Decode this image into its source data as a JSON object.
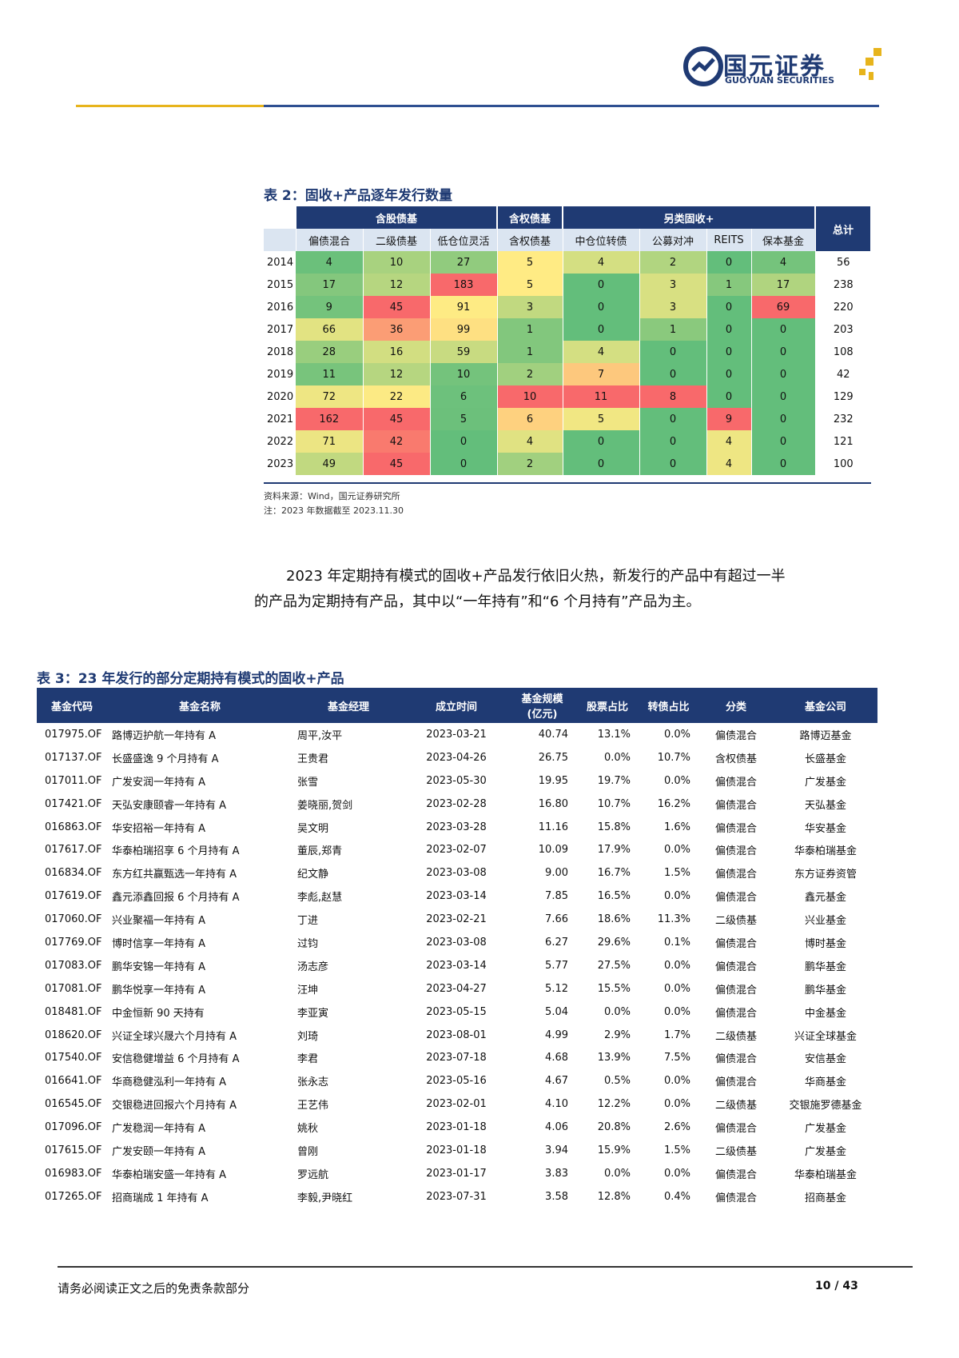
{
  "header": {
    "logo_cn": "国元证券",
    "logo_en": "GUOYUAN SECURITIES",
    "colors": {
      "brand_blue": "#1f3a73",
      "brand_gold": "#e7b41c"
    }
  },
  "table2": {
    "title": "表 2：固收+产品逐年发行数量",
    "groups": [
      "含股债基",
      "含权债基",
      "另类固收+",
      "总计"
    ],
    "columns": [
      "偏债混合",
      "二级债基",
      "低仓位灵活",
      "含权债基",
      "中仓位转债",
      "公募对冲",
      "REITS",
      "保本基金"
    ],
    "rows": [
      {
        "year": "2014",
        "values": [
          "4",
          "10",
          "27",
          "5",
          "4",
          "2",
          "0",
          "4"
        ],
        "total": "56"
      },
      {
        "year": "2015",
        "values": [
          "17",
          "12",
          "183",
          "5",
          "0",
          "3",
          "1",
          "17"
        ],
        "total": "238"
      },
      {
        "year": "2016",
        "values": [
          "9",
          "45",
          "91",
          "3",
          "0",
          "3",
          "0",
          "69"
        ],
        "total": "220"
      },
      {
        "year": "2017",
        "values": [
          "66",
          "36",
          "99",
          "1",
          "0",
          "1",
          "0",
          "0"
        ],
        "total": "203"
      },
      {
        "year": "2018",
        "values": [
          "28",
          "16",
          "59",
          "1",
          "4",
          "0",
          "0",
          "0"
        ],
        "total": "108"
      },
      {
        "year": "2019",
        "values": [
          "11",
          "12",
          "10",
          "2",
          "7",
          "0",
          "0",
          "0"
        ],
        "total": "42"
      },
      {
        "year": "2020",
        "values": [
          "72",
          "22",
          "6",
          "10",
          "11",
          "8",
          "0",
          "0"
        ],
        "total": "129"
      },
      {
        "year": "2021",
        "values": [
          "162",
          "45",
          "5",
          "6",
          "5",
          "0",
          "9",
          "0"
        ],
        "total": "232"
      },
      {
        "year": "2022",
        "values": [
          "71",
          "42",
          "0",
          "4",
          "0",
          "0",
          "4",
          "0"
        ],
        "total": "121"
      },
      {
        "year": "2023",
        "values": [
          "49",
          "45",
          "0",
          "2",
          "0",
          "0",
          "4",
          "0"
        ],
        "total": "100"
      }
    ],
    "source": "资料来源：Wind，国元证券研究所",
    "note": "注：2023 年数据截至 2023.11.30"
  },
  "paragraph": {
    "line1": "2023 年定期持有模式的固收+产品发行依旧火热，新发行的产品中有超过一半",
    "line2": "的产品为定期持有产品，其中以“一年持有”和“6 个月持有”产品为主。"
  },
  "table3": {
    "title": "表 3：23 年发行的部分定期持有模式的固收+产品",
    "headers": [
      "基金代码",
      "基金名称",
      "基金经理",
      "成立时间",
      "基金规模\n(亿元)",
      "股票占比",
      "转债占比",
      "分类",
      "基金公司"
    ],
    "rows": [
      [
        "017975.OF",
        "路博迈护航一年持有 A",
        "周平,汝平",
        "2023-03-21",
        "40.74",
        "13.1%",
        "0.0%",
        "偏债混合",
        "路博迈基金"
      ],
      [
        "017137.OF",
        "长盛盛逸 9 个月持有 A",
        "王贵君",
        "2023-04-26",
        "26.75",
        "0.0%",
        "10.7%",
        "含权债基",
        "长盛基金"
      ],
      [
        "017011.OF",
        "广发安润一年持有 A",
        "张雪",
        "2023-05-30",
        "19.95",
        "19.7%",
        "0.0%",
        "偏债混合",
        "广发基金"
      ],
      [
        "017421.OF",
        "天弘安康颐睿一年持有 A",
        "姜晓丽,贺剑",
        "2023-02-28",
        "16.80",
        "10.7%",
        "16.2%",
        "偏债混合",
        "天弘基金"
      ],
      [
        "016863.OF",
        "华安招裕一年持有 A",
        "吴文明",
        "2023-03-28",
        "11.16",
        "15.8%",
        "1.6%",
        "偏债混合",
        "华安基金"
      ],
      [
        "017617.OF",
        "华泰柏瑞招享 6 个月持有 A",
        "董辰,郑青",
        "2023-02-07",
        "10.09",
        "17.9%",
        "0.0%",
        "偏债混合",
        "华泰柏瑞基金"
      ],
      [
        "016834.OF",
        "东方红共赢甄选一年持有 A",
        "纪文静",
        "2023-03-08",
        "9.00",
        "16.7%",
        "1.5%",
        "偏债混合",
        "东方证券资管"
      ],
      [
        "017619.OF",
        "鑫元添鑫回报 6 个月持有 A",
        "李彪,赵慧",
        "2023-03-14",
        "7.85",
        "16.5%",
        "0.0%",
        "偏债混合",
        "鑫元基金"
      ],
      [
        "017060.OF",
        "兴业聚福一年持有 A",
        "丁进",
        "2023-02-21",
        "7.66",
        "18.6%",
        "11.3%",
        "二级债基",
        "兴业基金"
      ],
      [
        "017769.OF",
        "博时信享一年持有 A",
        "过钧",
        "2023-03-08",
        "6.27",
        "29.6%",
        "0.1%",
        "偏债混合",
        "博时基金"
      ],
      [
        "017083.OF",
        "鹏华安锦一年持有 A",
        "汤志彦",
        "2023-03-14",
        "5.77",
        "27.5%",
        "0.0%",
        "偏债混合",
        "鹏华基金"
      ],
      [
        "017081.OF",
        "鹏华悦享一年持有 A",
        "汪坤",
        "2023-04-27",
        "5.12",
        "15.5%",
        "0.0%",
        "偏债混合",
        "鹏华基金"
      ],
      [
        "018481.OF",
        "中金恒新 90 天持有",
        "李亚寅",
        "2023-05-15",
        "5.04",
        "0.0%",
        "0.0%",
        "偏债混合",
        "中金基金"
      ],
      [
        "018620.OF",
        "兴证全球兴晟六个月持有 A",
        "刘琦",
        "2023-08-01",
        "4.99",
        "2.9%",
        "1.7%",
        "二级债基",
        "兴证全球基金"
      ],
      [
        "017540.OF",
        "安信稳健增益 6 个月持有 A",
        "李君",
        "2023-07-18",
        "4.68",
        "13.9%",
        "7.5%",
        "偏债混合",
        "安信基金"
      ],
      [
        "016641.OF",
        "华商稳健泓利一年持有 A",
        "张永志",
        "2023-05-16",
        "4.67",
        "0.5%",
        "0.0%",
        "偏债混合",
        "华商基金"
      ],
      [
        "016545.OF",
        "交银稳进回报六个月持有 A",
        "王艺伟",
        "2023-02-01",
        "4.10",
        "12.2%",
        "0.0%",
        "二级债基",
        "交银施罗德基金"
      ],
      [
        "017096.OF",
        "广发稳润一年持有 A",
        "姚秋",
        "2023-01-18",
        "4.06",
        "20.8%",
        "2.6%",
        "偏债混合",
        "广发基金"
      ],
      [
        "017615.OF",
        "广发安颐一年持有 A",
        "曾刚",
        "2023-01-18",
        "3.94",
        "15.9%",
        "1.5%",
        "二级债基",
        "广发基金"
      ],
      [
        "016983.OF",
        "华泰柏瑞安盛一年持有 A",
        "罗远航",
        "2023-01-17",
        "3.83",
        "0.0%",
        "0.0%",
        "偏债混合",
        "华泰柏瑞基金"
      ],
      [
        "017265.OF",
        "招商瑞成 1 年持有 A",
        "李毅,尹晓红",
        "2023-07-31",
        "3.58",
        "12.8%",
        "0.4%",
        "偏债混合",
        "招商基金"
      ]
    ]
  },
  "footer": {
    "disclaimer": "请务必阅读正文之后的免责条款部分",
    "page": "10 / 43"
  }
}
